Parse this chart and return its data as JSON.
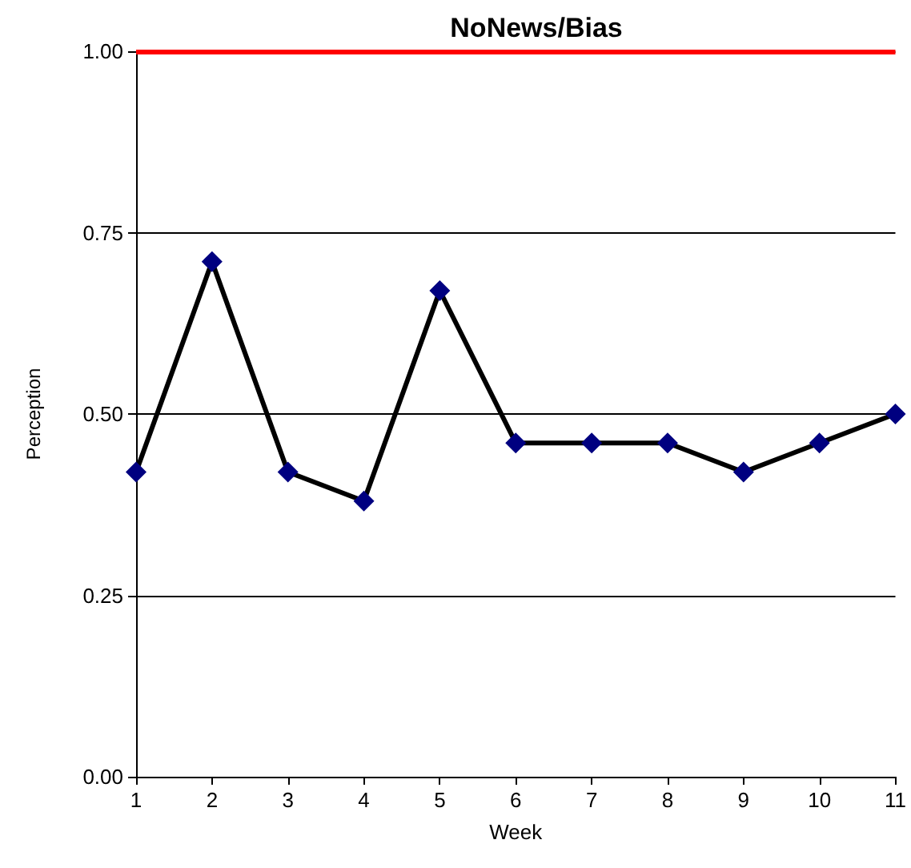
{
  "chart_data": {
    "type": "line",
    "title": "NoNews/Bias",
    "xlabel": "Week",
    "ylabel": "Perception",
    "x": [
      1,
      2,
      3,
      4,
      5,
      6,
      7,
      8,
      9,
      10,
      11
    ],
    "series": [
      {
        "color": "#000080",
        "values": [
          0.42,
          0.71,
          0.42,
          0.38,
          0.67,
          0.46,
          0.46,
          0.46,
          0.42,
          0.46,
          0.5
        ]
      }
    ],
    "xlim": [
      1,
      11
    ],
    "xticks": [
      1,
      2,
      3,
      4,
      5,
      6,
      7,
      8,
      9,
      10,
      11
    ],
    "ylim": [
      0,
      1
    ],
    "yticks": [
      {
        "value": 0,
        "label": "0.00"
      },
      {
        "value": 0.25,
        "label": "0.25"
      },
      {
        "value": 0.5,
        "label": "0.50"
      },
      {
        "value": 0.75,
        "label": "0.75"
      },
      {
        "value": 1,
        "label": "1.00"
      }
    ],
    "ref_lines": [
      {
        "axis": "y",
        "value": 1,
        "color": "#ff0000"
      }
    ],
    "grid": "y",
    "marker": "diamond",
    "line_style": "solid"
  }
}
